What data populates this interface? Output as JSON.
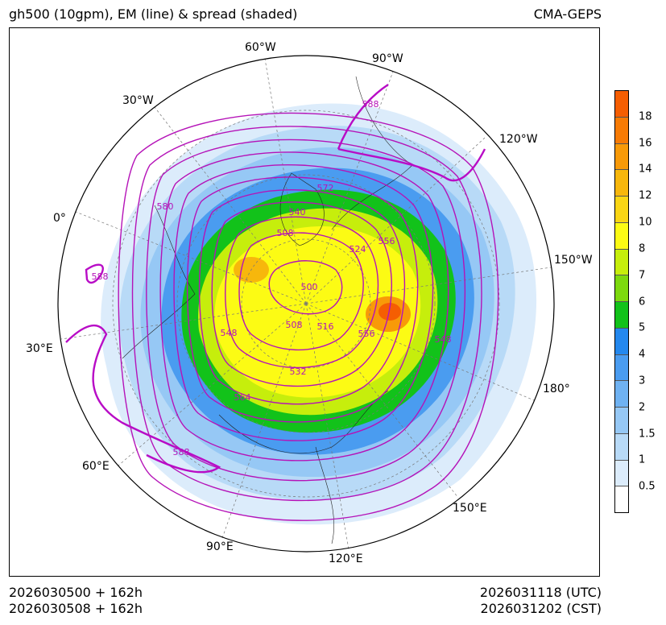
{
  "title": {
    "left": "gh500 (10gpm), EM (line) & spread (shaded)",
    "right": "CMA-GEPS"
  },
  "footer": {
    "init_utc": "2026030500 + 162h",
    "init_cst": "2026030508 + 162h",
    "valid_utc": "2026031118 (UTC)",
    "valid_cst": "2026031202 (CST)"
  },
  "map": {
    "projection": "north polar stereographic",
    "longitude_labels": [
      "60°W",
      "90°W",
      "120°W",
      "150°W",
      "180°",
      "150°E",
      "120°E",
      "90°E",
      "60°E",
      "30°E",
      "0°",
      "30°W"
    ],
    "contour_labels": [
      "572",
      "540",
      "508",
      "524",
      "556",
      "500",
      "516",
      "508",
      "548",
      "532",
      "556",
      "548",
      "564",
      "580",
      "588",
      "588",
      "588"
    ]
  },
  "colorbar": {
    "levels": [
      "0.5",
      "1",
      "1.5",
      "2",
      "3",
      "4",
      "5",
      "6",
      "7",
      "8",
      "10",
      "12",
      "14",
      "16",
      "18"
    ],
    "colors": [
      "#ffffff",
      "#dcecfb",
      "#b8daf7",
      "#96c8f5",
      "#6fb2f2",
      "#4a9cf0",
      "#2488ee",
      "#12c21a",
      "#7dd90e",
      "#c6ee0c",
      "#fcfb14",
      "#fad614",
      "#f7b70c",
      "#f89a08",
      "#f77b05",
      "#f55e02"
    ]
  },
  "colors": {
    "contour": "#b513b8",
    "contour_bold": "#b80cc6"
  }
}
